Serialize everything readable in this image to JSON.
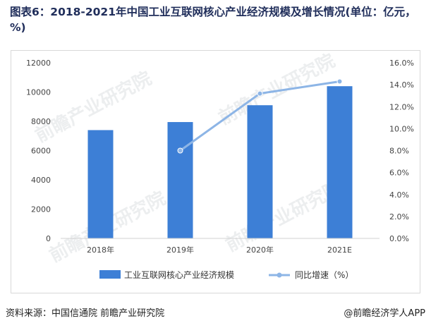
{
  "title": "图表6：2018-2021年中国工业互联网核心产业经济规模及增长情况(单位：亿元，%)",
  "watermark": "前瞻产业研究院",
  "source": "资料来源：中国信通院 前瞻产业研究院",
  "credit": "@前瞻经济学人APP",
  "colors": {
    "bar": "#3d7fd6",
    "line": "#8db5e6",
    "axis": "#d0d0d0"
  },
  "chart_data": {
    "type": "bar",
    "categories": [
      "2018年",
      "2019年",
      "2020年",
      "2021E"
    ],
    "series": [
      {
        "name": "工业互联网核心产业经济规模",
        "type": "bar",
        "axis": "left",
        "values": [
          7400,
          7950,
          9100,
          10400
        ]
      },
      {
        "name": "同比增速（%）",
        "type": "line",
        "axis": "right",
        "values": [
          null,
          8.0,
          13.2,
          14.3
        ]
      }
    ],
    "y_left": {
      "ticks": [
        0,
        2000,
        4000,
        6000,
        8000,
        10000,
        12000
      ],
      "lim": [
        0,
        12000
      ]
    },
    "y_right": {
      "ticks": [
        "0.0%",
        "2.0%",
        "4.0%",
        "6.0%",
        "8.0%",
        "10.0%",
        "12.0%",
        "14.0%",
        "16.0%"
      ],
      "lim": [
        0,
        16
      ]
    },
    "legend_position": "bottom",
    "grid": false
  }
}
